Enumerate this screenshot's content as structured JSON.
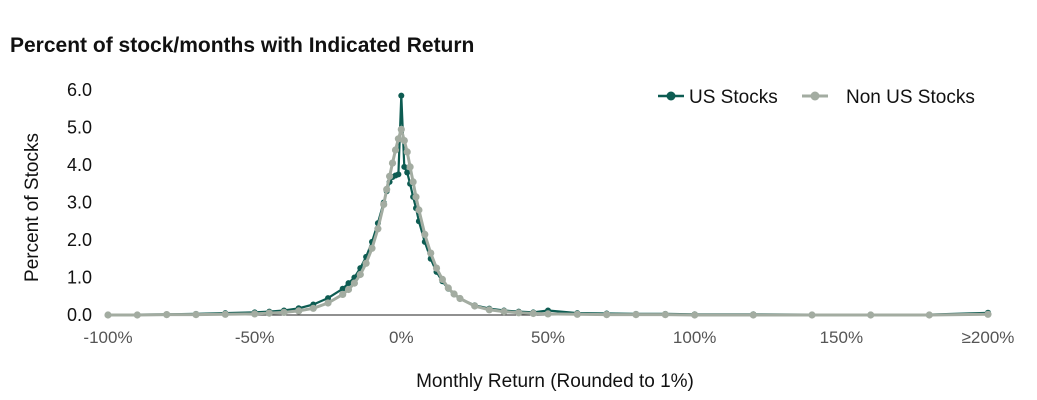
{
  "chart_data": {
    "type": "line",
    "title": "Percent of stock/months with Indicated Return",
    "xlabel": "Monthly Return (Rounded to 1%)",
    "ylabel": "Percent of Stocks",
    "xlim": [
      -100,
      200
    ],
    "ylim": [
      0,
      6
    ],
    "x_ticks": [
      {
        "value": -100,
        "label": "-100%"
      },
      {
        "value": -50,
        "label": "-50%"
      },
      {
        "value": 0,
        "label": "0%"
      },
      {
        "value": 50,
        "label": "50%"
      },
      {
        "value": 100,
        "label": "100%"
      },
      {
        "value": 150,
        "label": "150%"
      },
      {
        "value": 200,
        "label": "≥200%"
      }
    ],
    "y_ticks": [
      {
        "value": 0,
        "label": "0.0"
      },
      {
        "value": 1,
        "label": "1.0"
      },
      {
        "value": 2,
        "label": "2.0"
      },
      {
        "value": 3,
        "label": "3.0"
      },
      {
        "value": 4,
        "label": "4.0"
      },
      {
        "value": 5,
        "label": "5.0"
      },
      {
        "value": 6,
        "label": "6.0"
      }
    ],
    "grid": false,
    "legend_position": "top-right",
    "series": [
      {
        "name": "US Stocks",
        "color": "#0d5c52",
        "points": [
          [
            -100,
            0.01
          ],
          [
            -90,
            0.01
          ],
          [
            -80,
            0.02
          ],
          [
            -70,
            0.03
          ],
          [
            -60,
            0.05
          ],
          [
            -50,
            0.07
          ],
          [
            -45,
            0.09
          ],
          [
            -40,
            0.12
          ],
          [
            -35,
            0.18
          ],
          [
            -30,
            0.28
          ],
          [
            -25,
            0.45
          ],
          [
            -20,
            0.7
          ],
          [
            -18,
            0.85
          ],
          [
            -16,
            1.0
          ],
          [
            -14,
            1.25
          ],
          [
            -12,
            1.55
          ],
          [
            -10,
            1.95
          ],
          [
            -8,
            2.45
          ],
          [
            -6,
            3.0
          ],
          [
            -5,
            3.3
          ],
          [
            -4,
            3.55
          ],
          [
            -3,
            3.68
          ],
          [
            -2,
            3.72
          ],
          [
            -1,
            3.75
          ],
          [
            0,
            5.85
          ],
          [
            1,
            3.95
          ],
          [
            2,
            3.8
          ],
          [
            3,
            3.5
          ],
          [
            4,
            3.15
          ],
          [
            5,
            2.85
          ],
          [
            6,
            2.5
          ],
          [
            8,
            1.95
          ],
          [
            10,
            1.5
          ],
          [
            12,
            1.15
          ],
          [
            14,
            0.9
          ],
          [
            16,
            0.7
          ],
          [
            18,
            0.55
          ],
          [
            20,
            0.43
          ],
          [
            25,
            0.26
          ],
          [
            30,
            0.17
          ],
          [
            35,
            0.12
          ],
          [
            40,
            0.09
          ],
          [
            45,
            0.07
          ],
          [
            50,
            0.12
          ],
          [
            60,
            0.05
          ],
          [
            70,
            0.04
          ],
          [
            80,
            0.03
          ],
          [
            90,
            0.03
          ],
          [
            100,
            0.02
          ],
          [
            120,
            0.02
          ],
          [
            140,
            0.01
          ],
          [
            160,
            0.01
          ],
          [
            180,
            0.01
          ],
          [
            200,
            0.06
          ]
        ]
      },
      {
        "name": "Non US Stocks",
        "color": "#a3aca1",
        "points": [
          [
            -100,
            0.0
          ],
          [
            -90,
            0.0
          ],
          [
            -80,
            0.01
          ],
          [
            -70,
            0.01
          ],
          [
            -60,
            0.02
          ],
          [
            -50,
            0.03
          ],
          [
            -45,
            0.05
          ],
          [
            -40,
            0.07
          ],
          [
            -35,
            0.11
          ],
          [
            -30,
            0.18
          ],
          [
            -25,
            0.32
          ],
          [
            -20,
            0.55
          ],
          [
            -18,
            0.68
          ],
          [
            -16,
            0.85
          ],
          [
            -14,
            1.08
          ],
          [
            -12,
            1.38
          ],
          [
            -10,
            1.78
          ],
          [
            -8,
            2.3
          ],
          [
            -6,
            2.95
          ],
          [
            -5,
            3.35
          ],
          [
            -4,
            3.7
          ],
          [
            -3,
            4.05
          ],
          [
            -2,
            4.4
          ],
          [
            -1,
            4.7
          ],
          [
            0,
            4.95
          ],
          [
            1,
            4.65
          ],
          [
            2,
            4.35
          ],
          [
            3,
            3.95
          ],
          [
            4,
            3.55
          ],
          [
            5,
            3.15
          ],
          [
            6,
            2.8
          ],
          [
            8,
            2.15
          ],
          [
            10,
            1.65
          ],
          [
            12,
            1.25
          ],
          [
            14,
            0.95
          ],
          [
            16,
            0.72
          ],
          [
            18,
            0.56
          ],
          [
            20,
            0.44
          ],
          [
            25,
            0.24
          ],
          [
            30,
            0.14
          ],
          [
            35,
            0.09
          ],
          [
            40,
            0.06
          ],
          [
            45,
            0.04
          ],
          [
            50,
            0.03
          ],
          [
            60,
            0.02
          ],
          [
            70,
            0.01
          ],
          [
            80,
            0.01
          ],
          [
            90,
            0.01
          ],
          [
            100,
            0.0
          ],
          [
            120,
            0.0
          ],
          [
            140,
            0.0
          ],
          [
            160,
            0.0
          ],
          [
            180,
            0.0
          ],
          [
            200,
            0.02
          ]
        ]
      }
    ]
  }
}
